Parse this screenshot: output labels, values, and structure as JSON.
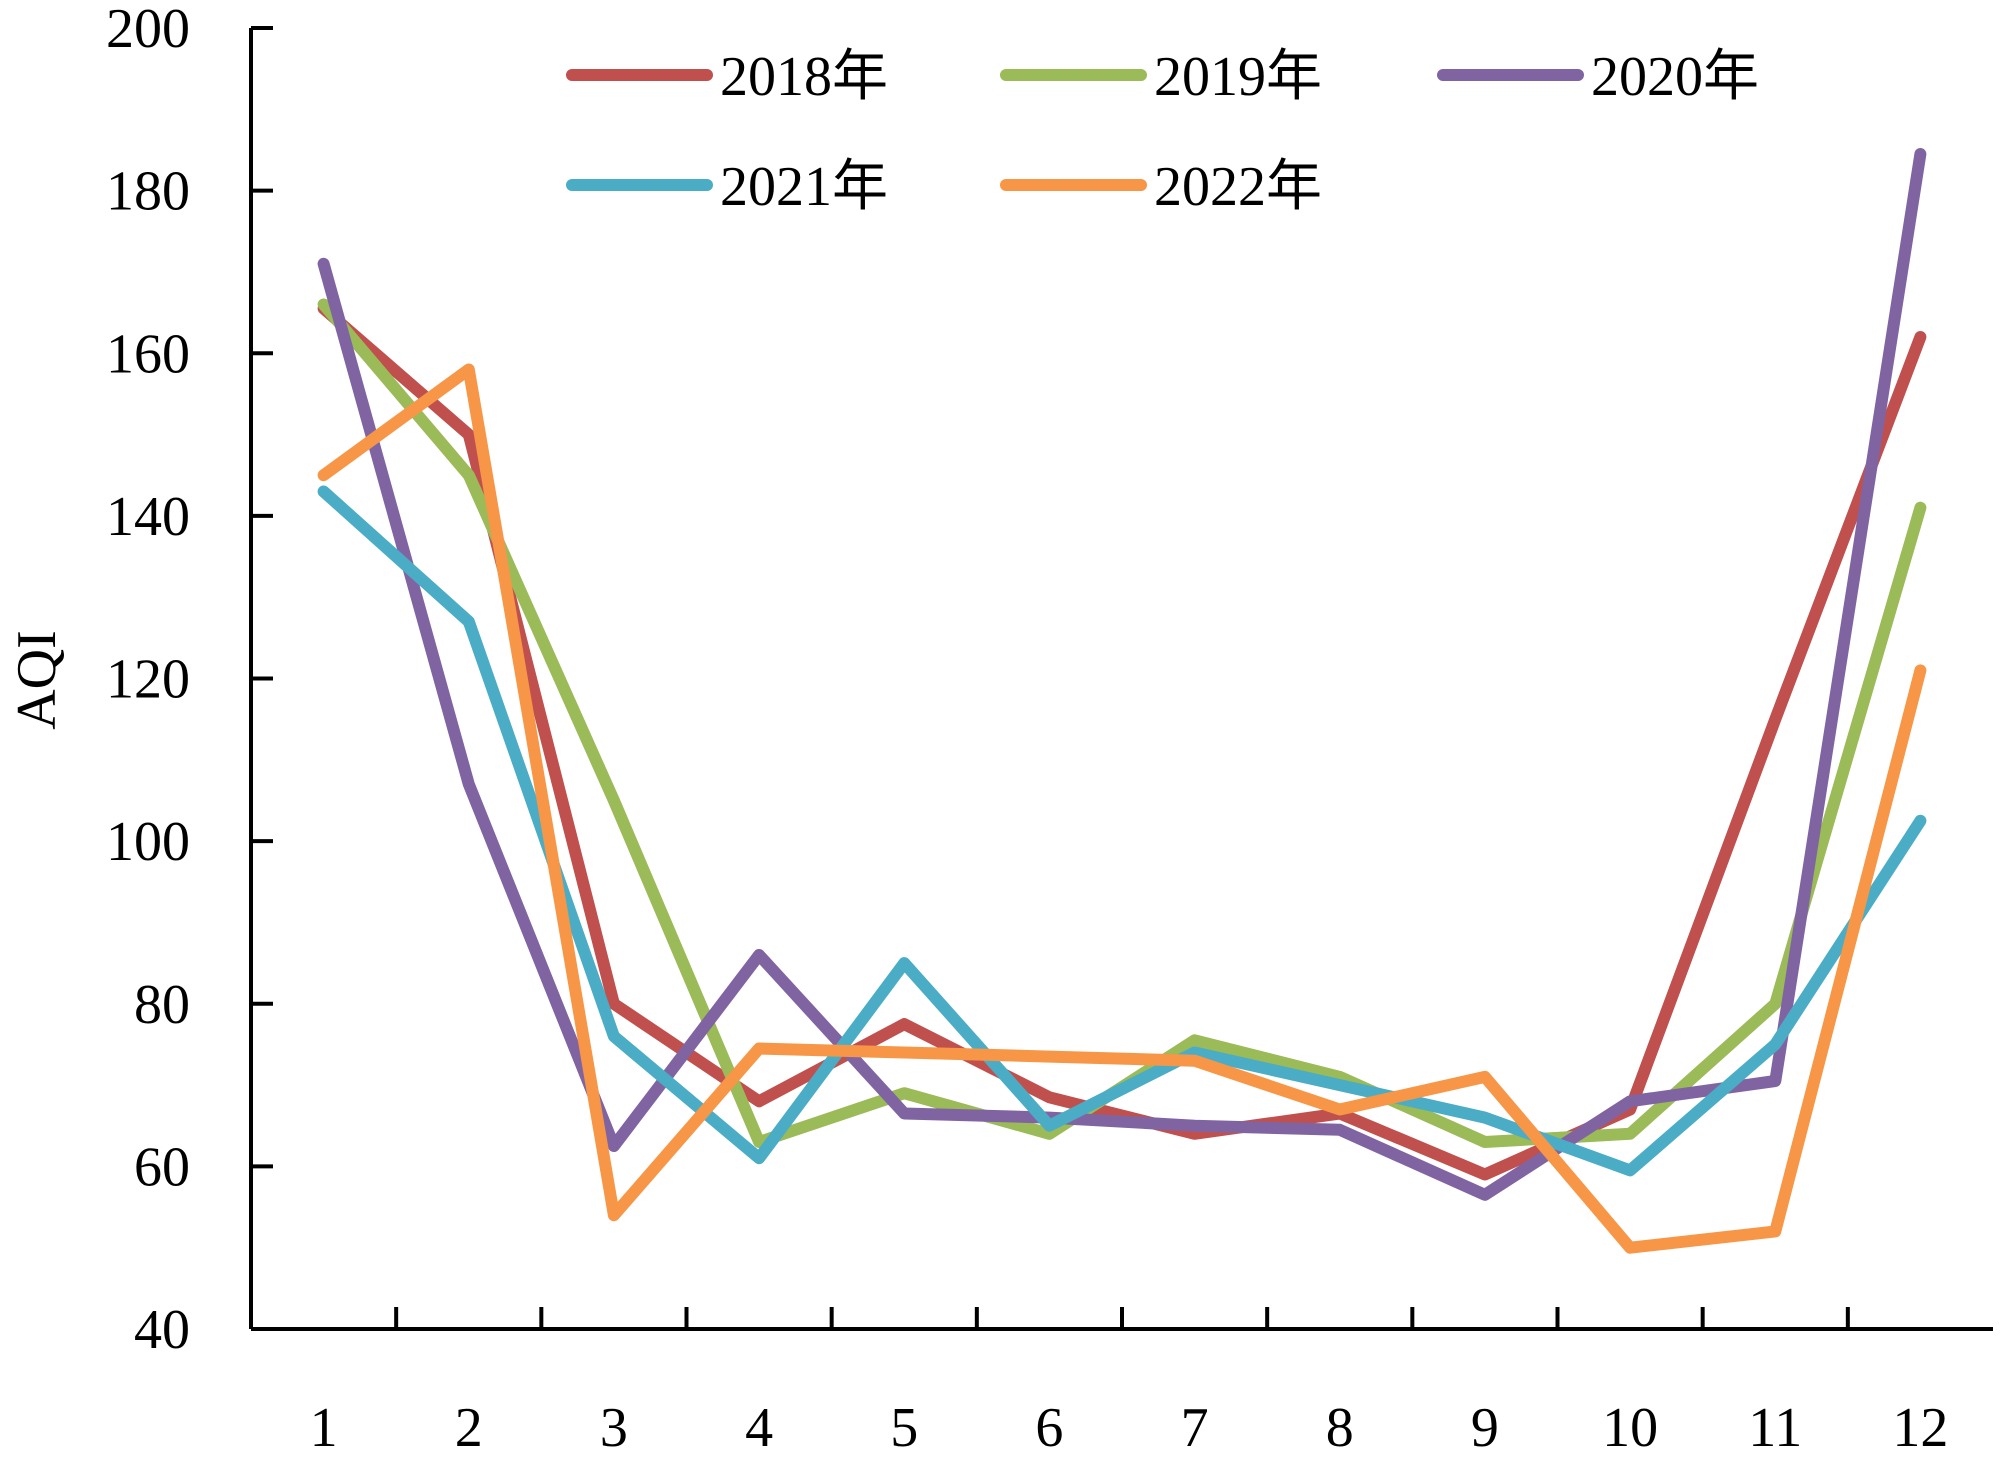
{
  "chart_data": {
    "type": "line",
    "title": "",
    "xlabel": "",
    "ylabel": "AQI",
    "ylim": [
      40,
      200
    ],
    "yticks": [
      40,
      60,
      80,
      100,
      120,
      140,
      160,
      180,
      200
    ],
    "categories": [
      "1",
      "2",
      "3",
      "4",
      "5",
      "6",
      "7",
      "8",
      "9",
      "10",
      "11",
      "12"
    ],
    "grid": false,
    "legend_position": "top",
    "series": [
      {
        "name": "2018年",
        "color": "#C0504D",
        "values": [
          165.5,
          150,
          80,
          68,
          77.5,
          68.5,
          64,
          66.5,
          59,
          67,
          115,
          162
        ]
      },
      {
        "name": "2019年",
        "color": "#9BBB59",
        "values": [
          166,
          145,
          105,
          63,
          69,
          64,
          75.5,
          71,
          63,
          64,
          80,
          141
        ]
      },
      {
        "name": "2020年",
        "color": "#8064A2",
        "values": [
          171,
          107,
          62.5,
          86,
          66.5,
          66,
          65,
          64.5,
          56.5,
          68,
          70.5,
          184.5
        ]
      },
      {
        "name": "2021年",
        "color": "#4BACC6",
        "values": [
          143,
          127,
          76,
          61,
          85,
          65,
          74,
          70,
          66,
          59.5,
          75,
          102.5
        ]
      },
      {
        "name": "2022年",
        "color": "#F79646",
        "values": [
          145,
          158,
          54,
          74.5,
          74,
          73.5,
          73,
          67,
          71,
          50,
          52,
          121
        ]
      }
    ]
  }
}
